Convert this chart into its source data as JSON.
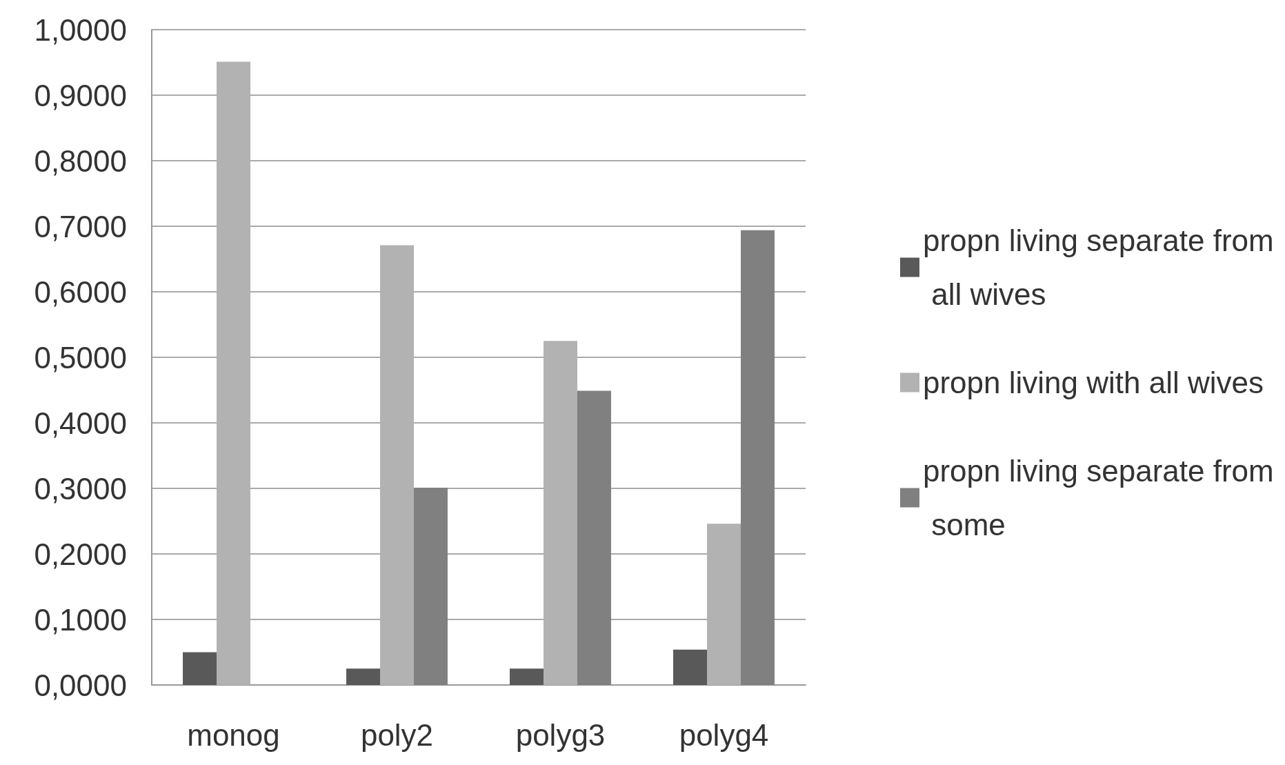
{
  "chart_data": {
    "type": "bar",
    "categories": [
      "monog",
      "poly2",
      "polyg3",
      "polyg4"
    ],
    "series": [
      {
        "name": "propn living separate from all wives",
        "color": "#595959",
        "values": [
          0.05,
          0.025,
          0.025,
          0.054
        ]
      },
      {
        "name": "propn living with all wives",
        "color": "#b2b2b2",
        "values": [
          0.951,
          0.671,
          0.525,
          0.246
        ]
      },
      {
        "name": "propn living separate from some",
        "color": "#808080",
        "values": [
          null,
          0.301,
          0.449,
          0.694
        ]
      }
    ],
    "ylim": [
      0,
      1
    ],
    "yticks": [
      {
        "value": 0,
        "label": "0,0000"
      },
      {
        "value": 0.1,
        "label": "0,1000"
      },
      {
        "value": 0.2,
        "label": "0,2000"
      },
      {
        "value": 0.3,
        "label": "0,3000"
      },
      {
        "value": 0.4,
        "label": "0,4000"
      },
      {
        "value": 0.5,
        "label": "0,5000"
      },
      {
        "value": 0.6,
        "label": "0,6000"
      },
      {
        "value": 0.7,
        "label": "0,7000"
      },
      {
        "value": 0.8,
        "label": "0,8000"
      },
      {
        "value": 0.9,
        "label": "0,9000"
      },
      {
        "value": 1,
        "label": "1,0000"
      }
    ],
    "grid": "y",
    "legend": "right"
  }
}
